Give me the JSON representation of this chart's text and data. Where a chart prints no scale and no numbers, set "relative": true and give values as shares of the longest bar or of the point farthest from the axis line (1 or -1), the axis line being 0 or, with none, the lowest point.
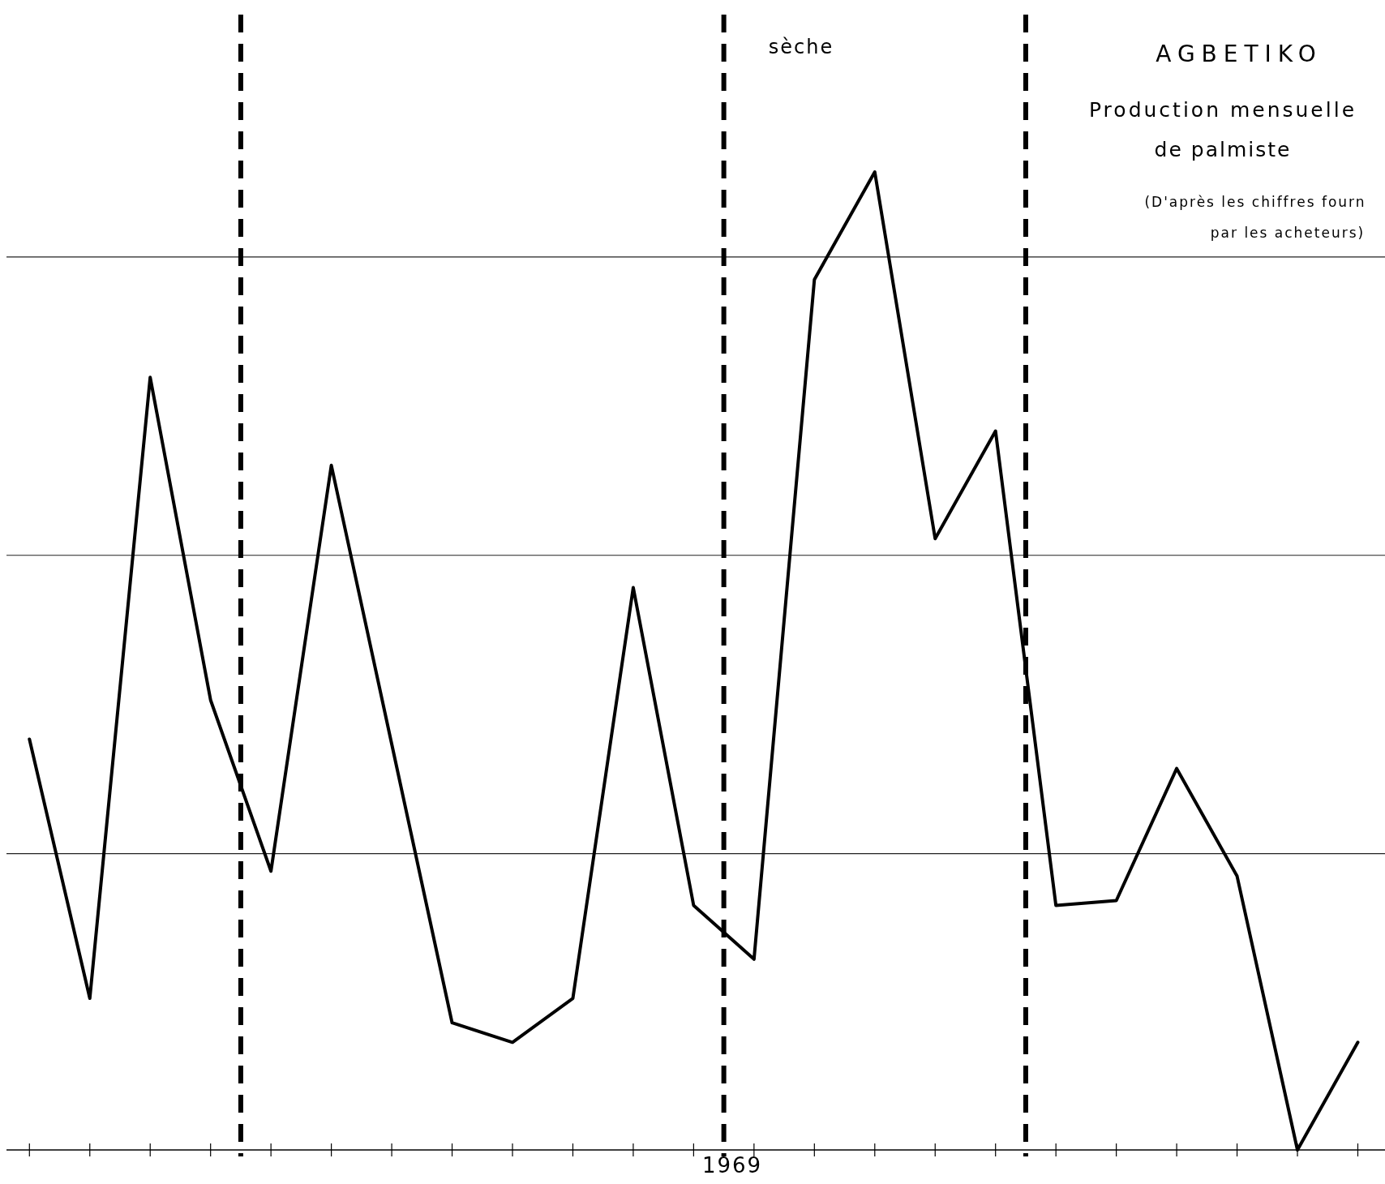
{
  "chart_data": {
    "type": "line",
    "title": "AGBETIKO",
    "subtitle": "Production mensuelle de palmiste",
    "annotations": [
      "(D'après les chiffres fourn",
      "par les acheteurs)",
      "sèche",
      "1969"
    ],
    "relative": true,
    "categories": [
      null,
      null,
      null,
      null,
      null,
      null,
      null,
      null,
      null,
      null,
      null,
      null,
      null,
      null,
      null,
      null,
      null,
      null,
      null,
      null,
      null,
      null,
      null
    ],
    "series": [
      {
        "color": "#000000",
        "values": [
          0.42,
          0.155,
          0.79,
          0.46,
          0.285,
          0.7,
          0.415,
          0.13,
          0.11,
          0.155,
          0.575,
          0.25,
          0.195,
          0.89,
          1,
          0.625,
          0.735,
          0.25,
          0.255,
          0.39,
          0.28,
          0,
          0.11
        ]
      }
    ],
    "marker": "none",
    "line_style": "solid"
  }
}
